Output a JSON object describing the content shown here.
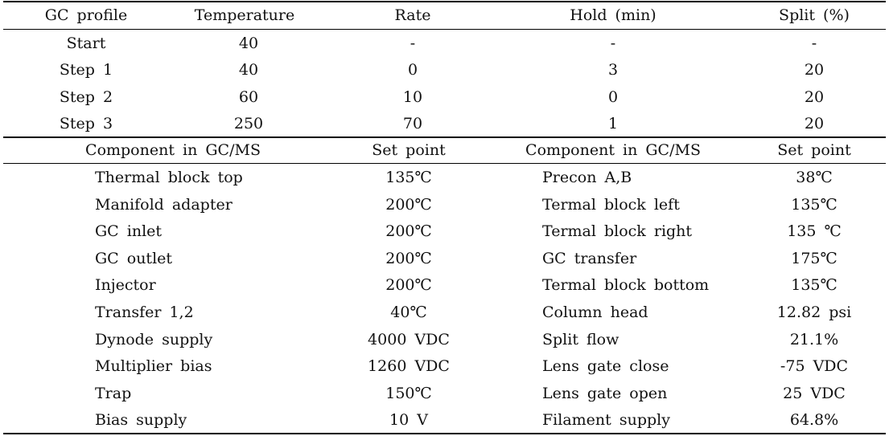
{
  "gc_profile": {
    "headers": [
      "GC profile",
      "Temperature",
      "Rate",
      "Hold (min)",
      "Split (%)"
    ],
    "rows": [
      [
        "Start",
        "40",
        "-",
        "-",
        "-"
      ],
      [
        "Step 1",
        "40",
        "0",
        "3",
        "20"
      ],
      [
        "Step 2",
        "60",
        "10",
        "0",
        "20"
      ],
      [
        "Step 3",
        "250",
        "70",
        "1",
        "20"
      ]
    ]
  },
  "components": {
    "headers": [
      "Component in GC/MS",
      "Set point",
      "Component in GC/MS",
      "Set point"
    ],
    "rows": [
      [
        "Thermal block top",
        "135℃",
        "Precon A,B",
        "38℃"
      ],
      [
        "Manifold adapter",
        "200℃",
        "Termal block left",
        "135℃"
      ],
      [
        "GC inlet",
        "200℃",
        "Termal block right",
        "135 ℃"
      ],
      [
        "GC outlet",
        "200℃",
        "GC transfer",
        "175℃"
      ],
      [
        "Injector",
        "200℃",
        "Termal block bottom",
        "135℃"
      ],
      [
        "Transfer 1,2",
        "40℃",
        "Column head",
        "12.82 psi"
      ],
      [
        "Dynode supply",
        "4000 VDC",
        "Split flow",
        "21.1%"
      ],
      [
        "Multiplier bias",
        "1260 VDC",
        "Lens gate close",
        "-75 VDC"
      ],
      [
        "Trap",
        "150℃",
        "Lens gate open",
        "25 VDC"
      ],
      [
        "Bias supply",
        "10 V",
        "Filament supply",
        "64.8%"
      ]
    ]
  }
}
